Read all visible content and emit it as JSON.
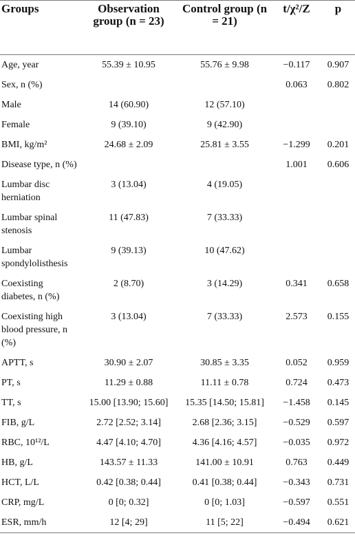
{
  "table": {
    "header": [
      "Groups",
      "Observation group (n = 23)",
      "Control group (n = 21)",
      "t/χ²/Z",
      "p"
    ],
    "rows": [
      [
        "Age, year",
        "55.39 ± 10.95",
        "55.76 ± 9.98",
        "−0.117",
        "0.907"
      ],
      [
        "Sex, n (%)",
        null,
        null,
        "0.063",
        "0.802"
      ],
      [
        "Male",
        "14 (60.90)",
        "12 (57.10)",
        null,
        null
      ],
      [
        "Female",
        "9 (39.10)",
        "9 (42.90)",
        null,
        null
      ],
      [
        "BMI, kg/m²",
        "24.68 ± 2.09",
        "25.81 ± 3.55",
        "−1.299",
        "0.201"
      ],
      [
        "Disease type, n (%)",
        null,
        null,
        "1.001",
        "0.606"
      ],
      [
        "Lumbar disc herniation",
        "3 (13.04)",
        "4 (19.05)",
        null,
        null
      ],
      [
        "Lumbar spinal stenosis",
        "11 (47.83)",
        "7 (33.33)",
        null,
        null
      ],
      [
        "Lumbar spondylolisthesis",
        "9 (39.13)",
        "10 (47.62)",
        null,
        null
      ],
      [
        "Coexisting diabetes, n (%)",
        "2 (8.70)",
        "3 (14.29)",
        "0.341",
        "0.658"
      ],
      [
        "Coexisting high blood pressure, n (%)",
        "3 (13.04)",
        "7 (33.33)",
        "2.573",
        "0.155"
      ],
      [
        "APTT, s",
        "30.90 ± 2.07",
        "30.85 ± 3.35",
        "0.052",
        "0.959"
      ],
      [
        "PT, s",
        "11.29 ± 0.88",
        "11.11 ± 0.78",
        "0.724",
        "0.473"
      ],
      [
        "TT, s",
        "15.00 [13.90; 15.60]",
        "15.35 [14.50; 15.81]",
        "−1.458",
        "0.145"
      ],
      [
        "FIB, g/L",
        "2.72 [2.52; 3.14]",
        "2.68 [2.36; 3.15]",
        "−0.529",
        "0.597"
      ],
      [
        "RBC, 10¹²/L",
        "4.47 [4.10; 4.70]",
        "4.36 [4.16; 4.57]",
        "−0.035",
        "0.972"
      ],
      [
        "HB, g/L",
        "143.57 ± 11.33",
        "141.00 ± 10.91",
        "0.763",
        "0.449"
      ],
      [
        "HCT, L/L",
        "0.42 [0.38; 0.44]",
        "0.41 [0.38; 0.44]",
        "−0.343",
        "0.731"
      ],
      [
        "CRP, mg/L",
        "0 [0; 0.32]",
        "0 [0; 1.03]",
        "−0.597",
        "0.551"
      ],
      [
        "ESR, mm/h",
        "12 [4; 29]",
        "11 [5; 22]",
        "−0.494",
        "0.621"
      ]
    ]
  }
}
